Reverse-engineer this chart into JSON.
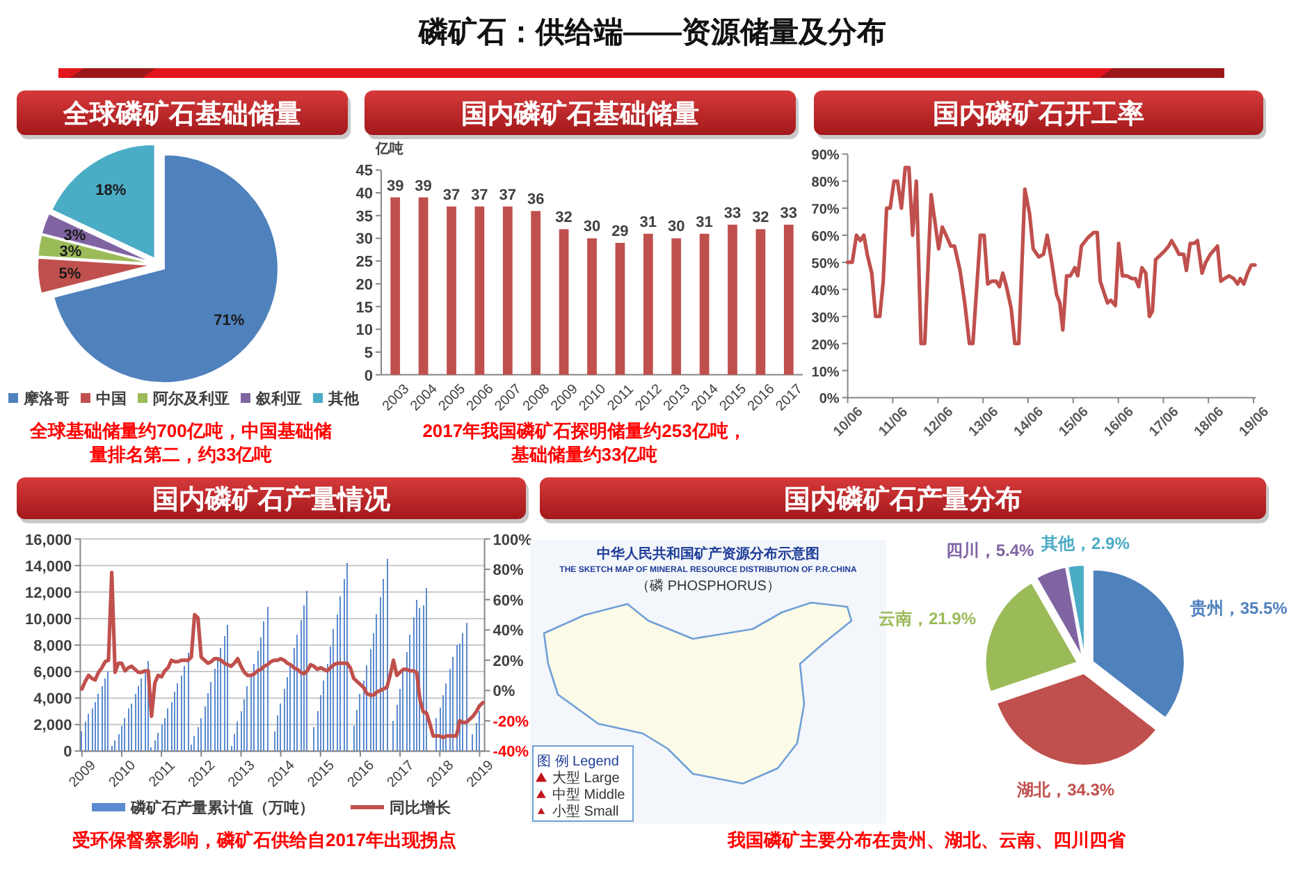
{
  "chart_data": [
    {
      "type": "other",
      "title": "磷矿石：供给端——资源储量及分布"
    },
    {
      "type": "pie",
      "title": "全球磷矿石基础储量",
      "categories": [
        "摩洛哥",
        "中国",
        "阿尔及利亚",
        "叙利亚",
        "其他"
      ],
      "values": [
        71,
        5,
        3,
        3,
        18
      ],
      "colors": [
        "#4f81bd",
        "#c0504d",
        "#9bbb59",
        "#8064a2",
        "#4bacc6"
      ],
      "value_labels": [
        "71%",
        "5%",
        "3%",
        "3%",
        "18%"
      ],
      "legend": "bottom",
      "annotations": [
        "全球基础储量约700亿吨，中国基础储量排名第二，约33亿吨"
      ]
    },
    {
      "type": "bar",
      "title": "国内磷矿石基础储量",
      "ylabel": "亿吨",
      "categories": [
        "2003",
        "2004",
        "2005",
        "2006",
        "2007",
        "2008",
        "2009",
        "2010",
        "2011",
        "2012",
        "2013",
        "2014",
        "2015",
        "2016",
        "2017"
      ],
      "values": [
        39,
        39,
        37,
        37,
        37,
        36,
        32,
        30,
        29,
        31,
        30,
        31,
        33,
        32,
        33
      ],
      "color": "#c0504d",
      "ylim": [
        0,
        45
      ],
      "yticks": [
        0,
        5,
        10,
        15,
        20,
        25,
        30,
        35,
        40,
        45
      ],
      "data_labels": true,
      "annotations": [
        "2017年我国磷矿石探明储量约253亿吨，基础储量约33亿吨"
      ]
    },
    {
      "type": "line",
      "title": "国内磷矿石开工率",
      "x": [
        "2010-06-01",
        "2010-07-08",
        "2010-08-11",
        "2010-09-11",
        "2010-10-10",
        "2010-11-06",
        "2010-12-13",
        "2011-01-13",
        "2011-02-16",
        "2011-03-16",
        "2011-04-12",
        "2011-05-11",
        "2011-06-11",
        "2011-07-10",
        "2011-08-10",
        "2011-09-10",
        "2011-10-10",
        "2011-11-09",
        "2011-12-09",
        "2012-01-16",
        "2012-02-15",
        "2012-04-07",
        "2012-06-07",
        "2012-07-06",
        "2012-08-06",
        "2012-09-13",
        "2012-10-13",
        "2012-11-27",
        "2013-01-04",
        "2013-02-11",
        "2013-03-11",
        "2013-05-10",
        "2013-06-10",
        "2013-07-09",
        "2013-08-09",
        "2013-09-16",
        "2013-10-12",
        "2013-11-08",
        "2013-12-08",
        "2014-01-15",
        "2014-02-14",
        "2014-03-18",
        "2014-05-06",
        "2014-06-13",
        "2014-07-12",
        "2014-08-27",
        "2014-10-04",
        "2014-11-03",
        "2014-12-10",
        "2015-01-18",
        "2015-02-13",
        "2015-03-09",
        "2015-04-09",
        "2015-05-09",
        "2015-06-15",
        "2015-07-08",
        "2015-08-07",
        "2015-09-26",
        "2015-11-14",
        "2015-12-13",
        "2016-01-06",
        "2016-03-05",
        "2016-04-01",
        "2016-05-08",
        "2016-06-04",
        "2016-07-04",
        "2016-08-10",
        "2016-09-18",
        "2016-10-17",
        "2016-11-13",
        "2016-12-09",
        "2017-01-09",
        "2017-02-08",
        "2017-03-04",
        "2017-03-30",
        "2017-06-07",
        "2017-07-14",
        "2017-08-06",
        "2017-09-13",
        "2017-10-05",
        "2017-11-12",
        "2017-12-04",
        "2018-01-04",
        "2018-02-04",
        "2018-03-04",
        "2018-04-10",
        "2018-05-10",
        "2018-06-17",
        "2018-08-13",
        "2018-09-09",
        "2018-10-08",
        "2018-11-15",
        "2018-12-22",
        "2019-01-22",
        "2019-02-14",
        "2019-03-14",
        "2019-04-13",
        "2019-05-13",
        "2019-06-13"
      ],
      "values": [
        50,
        50,
        60,
        58,
        60,
        53,
        46,
        30,
        30,
        43,
        70,
        70,
        80,
        80,
        70,
        85,
        85,
        60,
        80,
        20,
        20,
        75,
        55,
        63,
        60,
        56,
        56,
        47,
        35,
        20,
        20,
        60,
        60,
        42,
        43,
        43,
        41,
        46,
        41,
        33,
        20,
        20,
        77,
        68,
        55,
        52,
        53,
        60,
        50,
        38,
        35,
        25,
        45,
        45,
        48,
        45,
        56,
        59,
        61,
        61,
        43,
        35,
        36,
        34,
        57,
        45,
        45,
        44,
        44,
        41,
        48,
        46,
        30,
        32,
        51,
        54,
        56,
        58,
        55,
        53,
        53,
        47,
        57,
        57,
        58,
        46,
        50,
        53,
        56,
        43,
        44,
        45,
        44,
        42,
        44,
        42,
        46,
        49,
        49
      ],
      "color": "#c0504d",
      "xlim": [
        "2010-06-01",
        "2019-06-20"
      ],
      "xticks": [
        {
          "value": "2010-06",
          "label": "10/06"
        },
        {
          "value": "2011-06",
          "label": "11/06"
        },
        {
          "value": "2012-06",
          "label": "12/06"
        },
        {
          "value": "2013-06",
          "label": "13/06"
        },
        {
          "value": "2014-06",
          "label": "14/06"
        },
        {
          "value": "2015-06",
          "label": "15/06"
        },
        {
          "value": "2016-06",
          "label": "16/06"
        },
        {
          "value": "2017-06",
          "label": "17/06"
        },
        {
          "value": "2018-06",
          "label": "18/06"
        },
        {
          "value": "2019-06",
          "label": "19/06"
        }
      ],
      "ylim": [
        0,
        90
      ],
      "yticks": [
        {
          "value": 0,
          "label": "0%"
        },
        {
          "value": 10,
          "label": "10%"
        },
        {
          "value": 20,
          "label": "20%"
        },
        {
          "value": 30,
          "label": "30%"
        },
        {
          "value": 40,
          "label": "40%"
        },
        {
          "value": 50,
          "label": "50%"
        },
        {
          "value": 60,
          "label": "60%"
        },
        {
          "value": 70,
          "label": "70%"
        },
        {
          "value": 80,
          "label": "80%"
        },
        {
          "value": 90,
          "label": "90%"
        }
      ]
    },
    {
      "type": "bar",
      "title": "国内磷矿石产量情况",
      "categories": [
        "2009",
        null,
        null,
        null,
        null,
        null,
        null,
        null,
        null,
        null,
        null,
        null,
        "2010",
        null,
        null,
        null,
        null,
        null,
        null,
        null,
        null,
        null,
        null,
        null,
        "2011",
        null,
        null,
        null,
        null,
        null,
        null,
        null,
        null,
        null,
        null,
        null,
        "2012",
        null,
        null,
        null,
        null,
        null,
        null,
        null,
        null,
        null,
        null,
        null,
        "2013",
        null,
        null,
        null,
        null,
        null,
        null,
        null,
        null,
        null,
        null,
        null,
        "2014",
        null,
        null,
        null,
        null,
        null,
        null,
        null,
        null,
        null,
        null,
        null,
        "2015",
        null,
        null,
        null,
        null,
        null,
        null,
        null,
        null,
        null,
        null,
        null,
        "2016",
        null,
        null,
        null,
        null,
        null,
        null,
        null,
        null,
        null,
        null,
        null,
        "2017",
        null,
        null,
        null,
        null,
        null,
        null,
        null,
        null,
        null,
        null,
        null,
        "2018",
        null,
        null,
        null,
        null,
        null,
        null,
        null,
        null,
        null,
        null,
        null,
        "2019",
        null
      ],
      "series": [
        {
          "name": "磷矿石产量累计值（万吨）",
          "type": "bar",
          "color": "#5b8bd0",
          "values": [
            1500,
            2200,
            2800,
            3200,
            3700,
            4300,
            4900,
            5500,
            6000,
            400,
            800,
            1300,
            1900,
            2500,
            3200,
            3600,
            4300,
            4900,
            5500,
            6000,
            6800,
            300,
            800,
            1400,
            2000,
            2500,
            3200,
            3700,
            4500,
            5100,
            5700,
            6400,
            7400,
            500,
            1100,
            1800,
            2500,
            3400,
            4400,
            5200,
            6200,
            7000,
            7800,
            8700,
            9500,
            400,
            1300,
            2200,
            3000,
            3900,
            4900,
            5600,
            6600,
            7600,
            8600,
            9800,
            10900,
            null,
            1500,
            2700,
            3600,
            4700,
            5600,
            6600,
            7800,
            8800,
            9900,
            11000,
            12100,
            null,
            1800,
            3000,
            4200,
            5300,
            6600,
            7900,
            9200,
            10300,
            11700,
            13000,
            14200,
            null,
            1900,
            3100,
            4300,
            5300,
            6500,
            7700,
            8900,
            10300,
            11600,
            13000,
            14500,
            null,
            2300,
            3500,
            4700,
            6000,
            7500,
            8800,
            10100,
            11400,
            10800,
            11000,
            12300,
            null,
            null,
            2500,
            3300,
            4200,
            5100,
            6200,
            7100,
            8000,
            8100,
            8900,
            9700,
            null,
            1300,
            2100,
            3000,
            null
          ]
        },
        {
          "name": "同比增长",
          "type": "line",
          "axis": "y2",
          "color": "#c0504d",
          "values": [
            1,
            6,
            10,
            8,
            7,
            12,
            15,
            19,
            20,
            78,
            12,
            18,
            18,
            13,
            15,
            16,
            14,
            12,
            12,
            13,
            13,
            -17,
            5,
            10,
            9,
            13,
            15,
            20,
            19,
            19,
            20,
            20,
            20,
            22,
            50,
            48,
            22,
            20,
            18,
            19,
            21,
            21,
            20,
            18,
            17,
            16,
            18,
            21,
            16,
            12,
            10,
            10,
            11,
            13,
            14,
            16,
            17,
            19,
            20,
            20,
            21,
            20,
            18,
            17,
            15,
            14,
            12,
            11,
            13,
            17,
            16,
            14,
            15,
            14,
            13,
            15,
            17,
            18,
            18,
            18,
            18,
            15,
            8,
            6,
            4,
            2,
            -2,
            -3,
            -3,
            -1,
            0,
            1,
            2,
            10,
            20,
            10,
            12,
            14,
            14,
            13,
            13,
            12,
            -6,
            -14,
            -15,
            -22,
            -30,
            -30,
            -30,
            -31,
            -30,
            -30,
            -30,
            -30,
            -20,
            -21,
            -21,
            -19,
            -17,
            -14,
            -10,
            -8
          ]
        }
      ],
      "ylim": [
        0,
        16000
      ],
      "yticks": [
        0,
        {
          "value": 2000,
          "label": "2,000"
        },
        {
          "value": 4000,
          "label": "4,000"
        },
        {
          "value": 6000,
          "label": "6,000"
        },
        {
          "value": 8000,
          "label": "8,000"
        },
        {
          "value": 10000,
          "label": "10,000"
        },
        {
          "value": 12000,
          "label": "12,000"
        },
        {
          "value": 14000,
          "label": "14,000"
        },
        {
          "value": 16000,
          "label": "16,000"
        }
      ],
      "y2lim": [
        -40,
        100
      ],
      "y2ticks": [
        {
          "value": -40,
          "label": "-40%"
        },
        {
          "value": -20,
          "label": "-20%"
        },
        {
          "value": 0,
          "label": "0%"
        },
        {
          "value": 20,
          "label": "20%"
        },
        {
          "value": 40,
          "label": "40%"
        },
        {
          "value": 60,
          "label": "60%"
        },
        {
          "value": 80,
          "label": "80%"
        },
        {
          "value": 100,
          "label": "100%"
        }
      ],
      "grid": "y",
      "legend": "bottom",
      "annotations": [
        "受环保督察影响，磷矿石供给自2017年出现拐点"
      ]
    },
    {
      "type": "other",
      "title": "国内磷矿石产量分布",
      "annotations": [
        "中华人民共和国矿产资源分布示意图",
        "THE SKETCH MAP OF MINERAL RESOURCE DISTRIBUTION OF P.R.CHINA",
        "（磷 PHOSPHORUS）",
        "图 例 Legend",
        "大型 Large",
        "中型 Middle",
        "小型 Small",
        "我国磷矿主要分布在贵州、湖北、云南、四川四省"
      ]
    },
    {
      "type": "pie",
      "categories": [
        "贵州",
        "湖北",
        "云南",
        "四川",
        "其他"
      ],
      "values": [
        35.5,
        34.3,
        21.9,
        5.4,
        2.9
      ],
      "colors": [
        "#4f81bd",
        "#c0504d",
        "#9bbb59",
        "#8064a2",
        "#4bacc6"
      ],
      "value_labels": [
        "35.5%",
        "34.3%",
        "21.9%",
        "5.4%",
        "2.9%"
      ]
    }
  ]
}
